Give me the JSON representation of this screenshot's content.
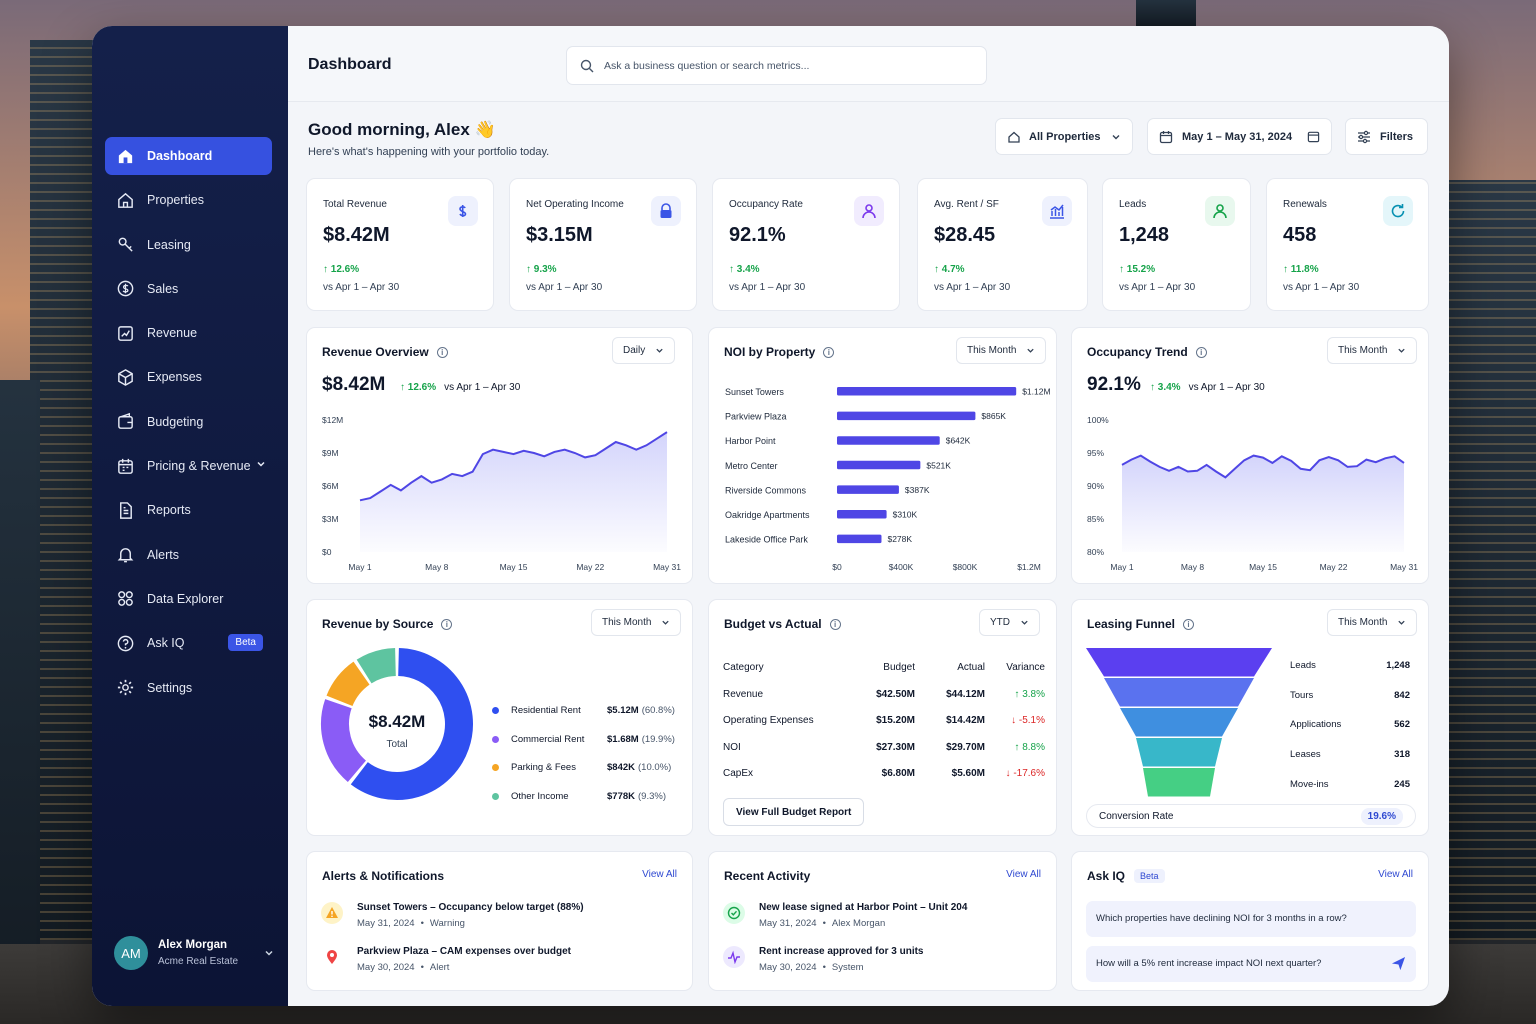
{
  "sidebar": {
    "items": [
      {
        "label": "Dashboard",
        "icon": "home-icon"
      },
      {
        "label": "Properties",
        "icon": "house-icon"
      },
      {
        "label": "Leasing",
        "icon": "key-icon"
      },
      {
        "label": "Sales",
        "icon": "dollar-circle-icon"
      },
      {
        "label": "Revenue",
        "icon": "chart-icon"
      },
      {
        "label": "Expenses",
        "icon": "box-icon"
      },
      {
        "label": "Budgeting",
        "icon": "wallet-icon"
      },
      {
        "label": "Pricing & Revenue",
        "icon": "calendar-icon"
      },
      {
        "label": "Reports",
        "icon": "document-icon"
      },
      {
        "label": "Alerts",
        "icon": "bell-icon"
      },
      {
        "label": "Data Explorer",
        "icon": "grid-icon"
      },
      {
        "label": "Ask IQ",
        "icon": "question-icon"
      },
      {
        "label": "Settings",
        "icon": "gear-icon"
      }
    ],
    "beta": "Beta",
    "user": {
      "initials": "AM",
      "name": "Alex Morgan",
      "org": "Acme Real Estate"
    }
  },
  "header": {
    "title": "Dashboard",
    "search_placeholder": "Ask a business question or search metrics..."
  },
  "greeting": {
    "title": "Good morning, Alex 👋",
    "subtitle": "Here's what's happening with your portfolio today."
  },
  "controls": {
    "properties": "All Properties",
    "date": "May 1 – May 31, 2024",
    "filters": "Filters"
  },
  "kpis": [
    {
      "label": "Total Revenue",
      "value": "$8.42M",
      "change": "12.6%",
      "vs": "vs Apr 1 – Apr 30",
      "color": "#3b55e6",
      "bg": "#eef1fd"
    },
    {
      "label": "Net Operating Income",
      "value": "$3.15M",
      "change": "9.3%",
      "vs": "vs Apr 1 – Apr 30",
      "color": "#3b55e6",
      "bg": "#eef1fd"
    },
    {
      "label": "Occupancy Rate",
      "value": "92.1%",
      "change": "3.4%",
      "vs": "vs Apr 1 – Apr 30",
      "color": "#7c3aed",
      "bg": "#f1ecfe"
    },
    {
      "label": "Avg. Rent / SF",
      "value": "$28.45",
      "change": "4.7%",
      "vs": "vs Apr 1 – Apr 30",
      "color": "#3b55e6",
      "bg": "#eef1fd"
    },
    {
      "label": "Leads",
      "value": "1,248",
      "change": "15.2%",
      "vs": "vs Apr 1 – Apr 30",
      "color": "#16a34a",
      "bg": "#e8f8ee"
    },
    {
      "label": "Renewals",
      "value": "458",
      "change": "11.8%",
      "vs": "vs Apr 1 – Apr 30",
      "color": "#0891b2",
      "bg": "#e4f6fa"
    }
  ],
  "revenue_overview": {
    "title": "Revenue Overview",
    "dropdown": "Daily",
    "value": "$8.42M",
    "change": "12.6%",
    "vs": "vs Apr 1 – Apr 30"
  },
  "noi": {
    "title": "NOI by Property",
    "dropdown": "This Month"
  },
  "occupancy": {
    "title": "Occupancy Trend",
    "dropdown": "This Month",
    "value": "92.1%",
    "change": "3.4%",
    "vs": "vs Apr 1 – Apr 30"
  },
  "source": {
    "title": "Revenue by Source",
    "dropdown": "This Month",
    "center_value": "$8.42M",
    "center_label": "Total"
  },
  "budget": {
    "title": "Budget vs Actual",
    "dropdown": "YTD",
    "headers": [
      "Category",
      "Budget",
      "Actual",
      "Variance"
    ],
    "rows": [
      {
        "category": "Revenue",
        "budget": "$42.50M",
        "actual": "$44.12M",
        "variance": "3.8%",
        "dir": "up"
      },
      {
        "category": "Operating Expenses",
        "budget": "$15.20M",
        "actual": "$14.42M",
        "variance": "-5.1%",
        "dir": "down"
      },
      {
        "category": "NOI",
        "budget": "$27.30M",
        "actual": "$29.70M",
        "variance": "8.8%",
        "dir": "up"
      },
      {
        "category": "CapEx",
        "budget": "$6.80M",
        "actual": "$5.60M",
        "variance": "-17.6%",
        "dir": "down"
      }
    ],
    "button": "View Full Budget Report"
  },
  "funnel": {
    "title": "Leasing Funnel",
    "dropdown": "This Month",
    "stages": [
      {
        "label": "Leads",
        "value": "1,248"
      },
      {
        "label": "Tours",
        "value": "842"
      },
      {
        "label": "Applications",
        "value": "562"
      },
      {
        "label": "Leases",
        "value": "318"
      },
      {
        "label": "Move-ins",
        "value": "245"
      }
    ],
    "colors": [
      "#5b3ff0",
      "#5a72ef",
      "#3f8fe0",
      "#38b7c9",
      "#45cf84"
    ],
    "conversion_label": "Conversion Rate",
    "conversion_value": "19.6%"
  },
  "alerts": {
    "title": "Alerts & Notifications",
    "view_all": "View All",
    "items": [
      {
        "title": "Sunset Towers – Occupancy below target (88%)",
        "date": "May 31, 2024",
        "tag": "Warning",
        "icon": "warning-icon"
      },
      {
        "title": "Parkview Plaza – CAM expenses over budget",
        "date": "May 30, 2024",
        "tag": "Alert",
        "icon": "location-pin-icon"
      }
    ]
  },
  "activity": {
    "title": "Recent Activity",
    "view_all": "View All",
    "items": [
      {
        "title": "New lease signed at Harbor Point – Unit 204",
        "date": "May 31, 2024",
        "by": "Alex Morgan",
        "icon": "check-circle-icon"
      },
      {
        "title": "Rent increase approved for 3 units",
        "date": "May 30, 2024",
        "by": "System",
        "icon": "pulse-icon"
      }
    ]
  },
  "askiq": {
    "title": "Ask IQ",
    "beta": "Beta",
    "view_all": "View All",
    "q1": "Which properties have declining NOI for 3 months in a row?",
    "q2": "How will a 5% rent increase impact NOI next quarter?"
  },
  "chart_data": [
    {
      "type": "area",
      "title": "Revenue Overview",
      "ylim": [
        0,
        12
      ],
      "y_ticks": [
        "$12M",
        "$9M",
        "$6M",
        "$3M",
        "$0"
      ],
      "x_ticks": [
        "May 1",
        "May 8",
        "May 15",
        "May 22",
        "May 31"
      ],
      "x": [
        1,
        2,
        3,
        4,
        5,
        6,
        7,
        8,
        9,
        10,
        11,
        12,
        13,
        14,
        15,
        16,
        17,
        18,
        19,
        20,
        21,
        22,
        23,
        24,
        25,
        26,
        27,
        28,
        29,
        30,
        31
      ],
      "values": [
        4.7,
        4.9,
        5.5,
        6.1,
        5.6,
        6.3,
        6.9,
        6.3,
        6.6,
        7.1,
        6.9,
        7.3,
        8.9,
        9.3,
        9.1,
        8.9,
        9.2,
        9.0,
        8.7,
        9.1,
        9.3,
        9.0,
        8.6,
        8.8,
        9.4,
        10.0,
        9.7,
        9.3,
        9.7,
        10.3,
        10.9
      ]
    },
    {
      "type": "bar",
      "title": "NOI by Property",
      "orientation": "horizontal",
      "categories": [
        "Sunset Towers",
        "Parkview Plaza",
        "Harbor Point",
        "Metro Center",
        "Riverside Commons",
        "Oakridge Apartments",
        "Lakeside Office Park"
      ],
      "values": [
        1120,
        865,
        642,
        521,
        387,
        310,
        278
      ],
      "labels": [
        "$1.12M",
        "$865K",
        "$642K",
        "$521K",
        "$387K",
        "$310K",
        "$278K"
      ],
      "xlim": [
        0,
        1200
      ],
      "x_ticks": [
        "$0",
        "$400K",
        "$800K",
        "$1.2M"
      ],
      "tick_values": [
        0,
        400,
        800,
        1200
      ]
    },
    {
      "type": "area",
      "title": "Occupancy Trend",
      "ylim": [
        80,
        100
      ],
      "y_ticks": [
        "100%",
        "95%",
        "90%",
        "85%",
        "80%"
      ],
      "x_ticks": [
        "May 1",
        "May 8",
        "May 15",
        "May 22",
        "May 31"
      ],
      "x": [
        1,
        2,
        3,
        4,
        5,
        6,
        7,
        8,
        9,
        10,
        11,
        12,
        13,
        14,
        15,
        16,
        17,
        18,
        19,
        20,
        21,
        22,
        23,
        24,
        25,
        26,
        27,
        28,
        29,
        30,
        31
      ],
      "values": [
        93.2,
        94.0,
        94.6,
        93.7,
        92.9,
        92.3,
        92.9,
        92.2,
        92.3,
        93.2,
        92.2,
        91.3,
        92.6,
        93.9,
        94.6,
        94.3,
        93.5,
        94.5,
        93.8,
        92.6,
        92.4,
        93.9,
        94.4,
        93.9,
        92.9,
        93.0,
        94.0,
        93.6,
        94.2,
        94.5,
        93.5
      ]
    },
    {
      "type": "pie",
      "title": "Revenue by Source",
      "donut": true,
      "categories": [
        "Residential Rent",
        "Commercial Rent",
        "Parking & Fees",
        "Other Income"
      ],
      "values": [
        60.8,
        19.9,
        10.0,
        9.3
      ],
      "amounts": [
        "$5.12M",
        "$1.68M",
        "$842K",
        "$778K"
      ],
      "pcts": [
        "(60.8%)",
        "(19.9%)",
        "(10.0%)",
        "(9.3%)"
      ],
      "colors": [
        "#2f4ff0",
        "#8a5cf6",
        "#f5a524",
        "#5ec4a0"
      ]
    }
  ]
}
